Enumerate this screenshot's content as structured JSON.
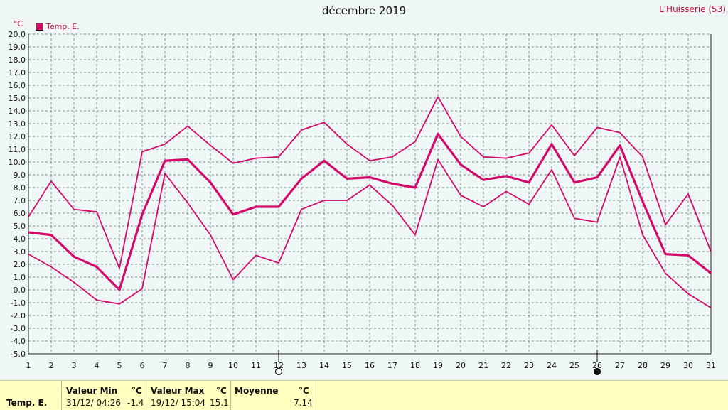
{
  "header": {
    "title": "décembre 2019",
    "station": "L'Huisserie (53)",
    "unit": "°C"
  },
  "legend": {
    "label": "Temp. E.",
    "color": "#d40a6a"
  },
  "chart_data": {
    "type": "line",
    "title": "décembre 2019",
    "ylabel": "°C",
    "ylim": [
      -5,
      20
    ],
    "xlim": [
      1,
      31
    ],
    "grid": true,
    "legend_position": "top-left",
    "y_ticks": [
      "-5.0",
      "-4.0",
      "-3.0",
      "-2.0",
      "-1.0",
      "0.0",
      "1.0",
      "2.0",
      "3.0",
      "4.0",
      "5.0",
      "6.0",
      "7.0",
      "8.0",
      "9.0",
      "10.0",
      "11.0",
      "12.0",
      "13.0",
      "14.0",
      "15.0",
      "16.0",
      "17.0",
      "18.0",
      "19.0",
      "20.0"
    ],
    "x_ticks": [
      "1",
      "2",
      "3",
      "4",
      "5",
      "6",
      "7",
      "8",
      "9",
      "10",
      "11",
      "12",
      "13",
      "14",
      "15",
      "16",
      "17",
      "18",
      "19",
      "20",
      "21",
      "22",
      "23",
      "24",
      "25",
      "26",
      "27",
      "28",
      "29",
      "30",
      "31"
    ],
    "x": [
      1,
      2,
      3,
      4,
      5,
      6,
      7,
      8,
      9,
      10,
      11,
      12,
      13,
      14,
      15,
      16,
      17,
      18,
      19,
      20,
      21,
      22,
      23,
      24,
      25,
      26,
      27,
      28,
      29,
      30,
      31
    ],
    "series": [
      {
        "name": "Temp. E.",
        "role": "max",
        "values": [
          5.7,
          8.5,
          6.3,
          6.1,
          1.7,
          10.8,
          11.4,
          12.8,
          11.3,
          9.9,
          10.3,
          10.4,
          12.5,
          13.1,
          11.4,
          10.1,
          10.4,
          11.6,
          15.1,
          12.0,
          10.4,
          10.3,
          10.7,
          12.9,
          10.5,
          12.7,
          12.3,
          10.4,
          5.1,
          7.5,
          3.0
        ]
      },
      {
        "name": "Temp. E.",
        "role": "mean",
        "values": [
          4.5,
          4.3,
          2.6,
          1.8,
          0.0,
          5.9,
          10.1,
          10.2,
          8.4,
          5.9,
          6.5,
          6.5,
          8.7,
          10.1,
          8.7,
          8.8,
          8.3,
          8.0,
          12.2,
          9.8,
          8.6,
          8.9,
          8.4,
          11.4,
          8.4,
          8.8,
          11.3,
          6.9,
          2.8,
          2.7,
          1.3
        ]
      },
      {
        "name": "Temp. E.",
        "role": "min",
        "values": [
          2.8,
          1.8,
          0.6,
          -0.8,
          -1.1,
          0.1,
          9.1,
          6.8,
          4.3,
          0.8,
          2.7,
          2.1,
          6.3,
          7.0,
          7.0,
          8.2,
          6.6,
          4.3,
          10.2,
          7.4,
          6.5,
          7.7,
          6.7,
          9.4,
          5.6,
          5.3,
          10.4,
          4.3,
          1.3,
          -0.3,
          -1.4
        ]
      }
    ],
    "moon_phases": [
      {
        "day": 12,
        "phase": "full"
      },
      {
        "day": 26,
        "phase": "new"
      }
    ]
  },
  "footer": {
    "row_label": "Temp. E.",
    "min": {
      "header": "Valeur Min",
      "unit": "°C",
      "when": "31/12/  04:26",
      "value": "-1.4"
    },
    "max": {
      "header": "Valeur Max",
      "unit": "°C",
      "when": "19/12/  15:04",
      "value": "15.1"
    },
    "mean": {
      "header": "Moyenne",
      "unit": "°C",
      "value": "7.14"
    }
  }
}
